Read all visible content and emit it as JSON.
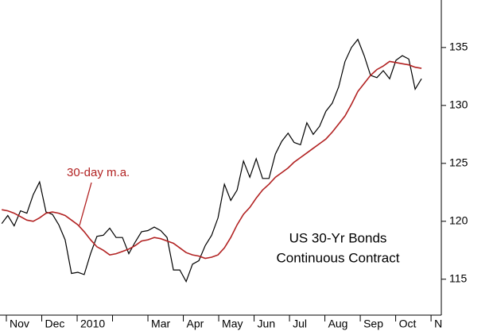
{
  "chart_data": {
    "type": "line",
    "title": "US 30-Yr Bonds",
    "subtitle": "Continuous Contract",
    "categories": [
      "Nov",
      "Dec",
      "2010",
      null,
      "Mar",
      "Apr",
      "May",
      "Jun",
      "Jul",
      "Aug",
      "Sep",
      "Oct",
      "N"
    ],
    "x": [
      -0.13,
      0.04,
      0.22,
      0.4,
      0.58,
      0.76,
      0.94,
      1.12,
      1.3,
      1.48,
      1.66,
      1.84,
      2.02,
      2.2,
      2.38,
      2.56,
      2.74,
      2.92,
      3.1,
      3.28,
      3.46,
      3.64,
      3.82,
      4.0,
      4.18,
      4.36,
      4.54,
      4.72,
      4.9,
      5.08,
      5.26,
      5.44,
      5.62,
      5.8,
      5.98,
      6.16,
      6.34,
      6.52,
      6.7,
      6.88,
      7.06,
      7.24,
      7.42,
      7.6,
      7.78,
      7.96,
      8.13,
      8.31,
      8.49,
      8.67,
      8.85,
      9.03,
      9.21,
      9.39,
      9.57,
      9.75,
      9.93,
      10.11,
      10.29,
      10.47,
      10.65,
      10.83,
      11.01,
      11.19,
      11.37,
      11.55,
      11.73
    ],
    "series": [
      {
        "color": "#000000",
        "values": [
          119.8,
          120.5,
          119.6,
          120.9,
          120.7,
          122.3,
          123.4,
          120.8,
          120.6,
          119.7,
          118.4,
          115.5,
          115.6,
          115.4,
          117.2,
          118.7,
          118.8,
          119.4,
          118.6,
          118.6,
          117.2,
          118.2,
          119.1,
          119.2,
          119.5,
          119.2,
          118.6,
          115.8,
          115.8,
          114.8,
          116.3,
          116.6,
          117.9,
          118.8,
          120.3,
          123.2,
          121.8,
          122.7,
          125.2,
          123.8,
          125.4,
          123.7,
          123.7,
          125.8,
          126.9,
          127.6,
          126.8,
          126.6,
          128.5,
          127.5,
          128.2,
          129.5,
          130.2,
          131.6,
          133.8,
          135.0,
          135.7,
          134.3,
          132.6,
          132.4,
          133.0,
          132.3,
          133.9,
          134.3,
          134.0,
          131.4,
          132.3
        ]
      },
      {
        "name": "30-day m.a.",
        "color": "#b22222",
        "values": [
          121.0,
          120.9,
          120.7,
          120.4,
          120.1,
          120.0,
          120.3,
          120.7,
          120.8,
          120.7,
          120.5,
          120.1,
          119.7,
          119.1,
          118.4,
          117.8,
          117.5,
          117.1,
          117.2,
          117.4,
          117.6,
          117.9,
          118.3,
          118.4,
          118.6,
          118.5,
          118.3,
          118.1,
          117.7,
          117.3,
          117.1,
          117.0,
          116.8,
          116.9,
          117.1,
          117.7,
          118.6,
          119.7,
          120.6,
          121.2,
          122.0,
          122.7,
          123.2,
          123.8,
          124.2,
          124.6,
          125.1,
          125.5,
          125.9,
          126.3,
          126.7,
          127.1,
          127.7,
          128.4,
          129.1,
          130.1,
          131.2,
          131.9,
          132.6,
          133.1,
          133.4,
          133.8,
          133.7,
          133.6,
          133.5,
          133.3,
          133.2
        ]
      }
    ],
    "xlim": [
      -0.18,
      12.29
    ],
    "ylim": [
      111.9,
      139.1
    ],
    "yticks": [
      115,
      120,
      125,
      130,
      135
    ]
  }
}
